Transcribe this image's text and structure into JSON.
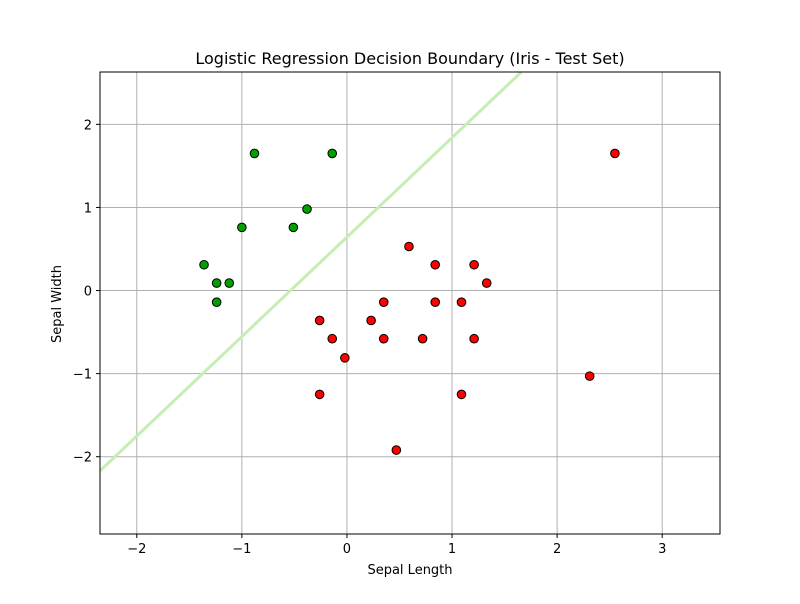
{
  "chart_data": {
    "type": "scatter",
    "title": "Logistic Regression Decision Boundary (Iris - Test Set)",
    "xlabel": "Sepal Length",
    "ylabel": "Sepal Width",
    "xlim": [
      -2.35,
      3.55
    ],
    "ylim": [
      -2.93,
      2.63
    ],
    "xticks": [
      -2,
      -1,
      0,
      1,
      2,
      3
    ],
    "yticks": [
      -2,
      -1,
      0,
      1,
      2
    ],
    "xtick_labels": [
      "−2",
      "−1",
      "0",
      "1",
      "2",
      "3"
    ],
    "ytick_labels": [
      "−2",
      "−1",
      "0",
      "1",
      "2"
    ],
    "grid": true,
    "colors": {
      "class_0": "#00a000",
      "class_1": "#ff0000",
      "boundary": "#c5eeb4",
      "grid": "#b0b0b0"
    },
    "decision_boundary": {
      "points": [
        [
          -2.35,
          -2.17
        ],
        [
          1.66,
          2.63
        ]
      ]
    },
    "series": [
      {
        "color": "#00a000",
        "points": [
          [
            -0.88,
            1.65
          ],
          [
            -0.14,
            1.65
          ],
          [
            -0.38,
            0.98
          ],
          [
            -1.0,
            0.76
          ],
          [
            -0.51,
            0.76
          ],
          [
            -1.36,
            0.31
          ],
          [
            -1.24,
            0.09
          ],
          [
            -1.12,
            0.09
          ],
          [
            -1.24,
            -0.14
          ]
        ]
      },
      {
        "color": "#ff0000",
        "points": [
          [
            2.55,
            1.65
          ],
          [
            0.59,
            0.53
          ],
          [
            0.84,
            0.31
          ],
          [
            1.21,
            0.31
          ],
          [
            1.33,
            0.09
          ],
          [
            0.35,
            -0.14
          ],
          [
            0.84,
            -0.14
          ],
          [
            1.09,
            -0.14
          ],
          [
            -0.26,
            -0.36
          ],
          [
            0.23,
            -0.36
          ],
          [
            -0.14,
            -0.58
          ],
          [
            0.35,
            -0.58
          ],
          [
            0.72,
            -0.58
          ],
          [
            1.21,
            -0.58
          ],
          [
            -0.02,
            -0.81
          ],
          [
            2.31,
            -1.03
          ],
          [
            -0.26,
            -1.25
          ],
          [
            1.09,
            -1.25
          ],
          [
            0.47,
            -1.92
          ]
        ]
      }
    ]
  }
}
